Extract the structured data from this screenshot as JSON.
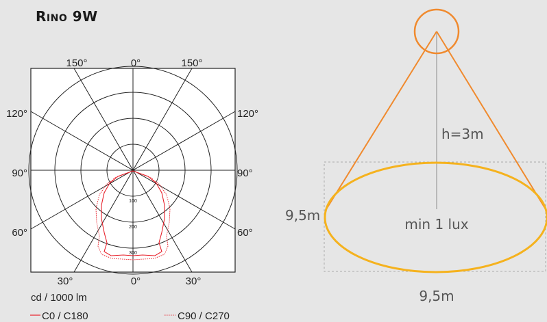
{
  "title": "Rino 9W",
  "polar": {
    "top_labels": [
      "150°",
      "0°",
      "150°"
    ],
    "bottom_labels": [
      "30°",
      "0°",
      "30°"
    ],
    "left_labels": [
      "120°",
      "90°",
      "60°"
    ],
    "right_labels": [
      "120°",
      "90°",
      "60°"
    ],
    "ring_labels": [
      "100",
      "200",
      "300"
    ],
    "unit": "cd / 1000 lm",
    "legend": [
      {
        "label": "C0 / C180",
        "color": "#e8202a",
        "style": "solid"
      },
      {
        "label": "C90 / C270",
        "color": "#e8202a",
        "style": "dotted"
      }
    ]
  },
  "cone": {
    "height_label": "h=3m",
    "illuminance_label": "min 1 lux",
    "diameter_left_label": "9,5m",
    "diameter_bottom_label": "9,5m",
    "cone_color": "#f08a2e",
    "ellipse_color": "#f5b21e",
    "axis_color": "#aaaaaa"
  }
}
